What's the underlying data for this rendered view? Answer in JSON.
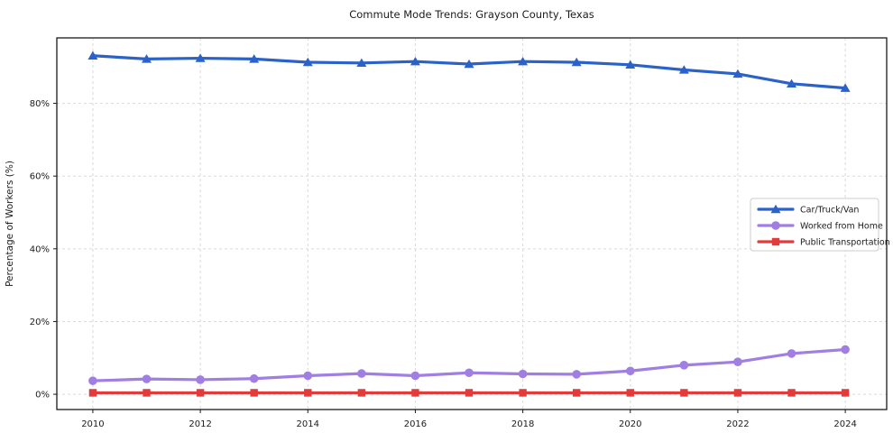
{
  "figure": {
    "background": "#ffffff",
    "axes_border_color": "#1a1a1a",
    "grid_color": "#d9d9d9",
    "text_color": "#1c1c1c"
  },
  "chart_data": {
    "type": "line",
    "title": "Commute Mode Trends: Grayson County, Texas",
    "xlabel": "",
    "ylabel": "Percentage of Workers (%)",
    "x": [
      2010,
      2011,
      2012,
      2013,
      2014,
      2015,
      2016,
      2017,
      2018,
      2019,
      2020,
      2021,
      2022,
      2023,
      2024
    ],
    "x_ticks": [
      2010,
      2012,
      2014,
      2016,
      2018,
      2020,
      2022,
      2024
    ],
    "x_tick_labels": [
      "2010",
      "2012",
      "2014",
      "2016",
      "2018",
      "2020",
      "2022",
      "2024"
    ],
    "y_ticks": [
      0,
      20,
      40,
      60,
      80
    ],
    "y_tick_labels": [
      "0%",
      "20%",
      "40%",
      "60%",
      "80%"
    ],
    "xlim": [
      2009.33,
      2024.77
    ],
    "ylim": [
      -4.2,
      98
    ],
    "grid": "on-dashed-both-axes",
    "legend_position": "center-right",
    "series": [
      {
        "name": "Car/Truck/Van",
        "marker": "triangle",
        "color": "#2b62c9",
        "values": [
          93.1,
          92.2,
          92.4,
          92.2,
          91.3,
          91.1,
          91.5,
          90.8,
          91.5,
          91.3,
          90.6,
          89.2,
          88.1,
          85.4,
          84.2
        ]
      },
      {
        "name": "Worked from Home",
        "marker": "circle",
        "color": "#a07ee2",
        "values": [
          3.7,
          4.2,
          4.0,
          4.3,
          5.1,
          5.7,
          5.1,
          5.9,
          5.6,
          5.5,
          6.4,
          8.0,
          8.9,
          11.2,
          12.3
        ]
      },
      {
        "name": "Public Transportation",
        "marker": "square",
        "color": "#e23b3b",
        "values": [
          0.4,
          0.4,
          0.4,
          0.4,
          0.4,
          0.4,
          0.4,
          0.4,
          0.4,
          0.4,
          0.4,
          0.4,
          0.4,
          0.4,
          0.4
        ]
      }
    ]
  }
}
